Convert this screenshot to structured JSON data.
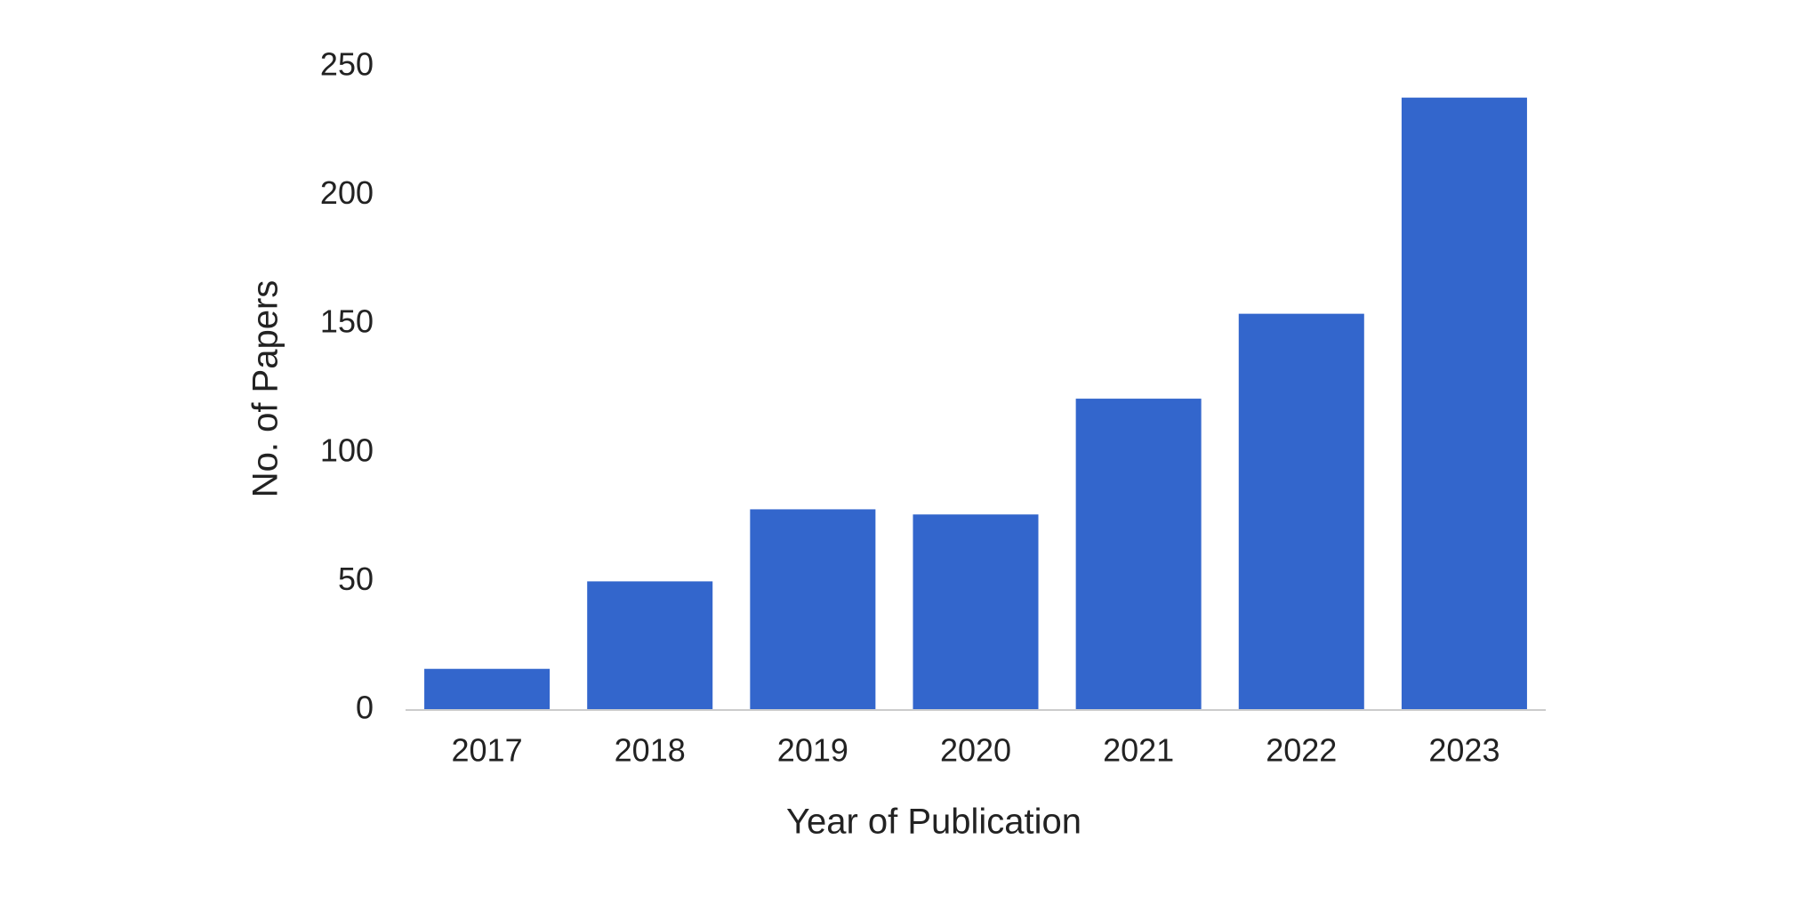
{
  "chart_data": {
    "type": "bar",
    "x_label": "Year of Publication",
    "y_label": "No. of Papers",
    "categories": [
      "2017",
      "2018",
      "2019",
      "2020",
      "2021",
      "2022",
      "2023"
    ],
    "values": [
      16,
      50,
      78,
      76,
      121,
      154,
      238
    ],
    "color": "#3366cc",
    "ylim": [
      0,
      250
    ],
    "yticks": [
      0,
      50,
      100,
      150,
      200,
      250
    ],
    "grid": false
  }
}
